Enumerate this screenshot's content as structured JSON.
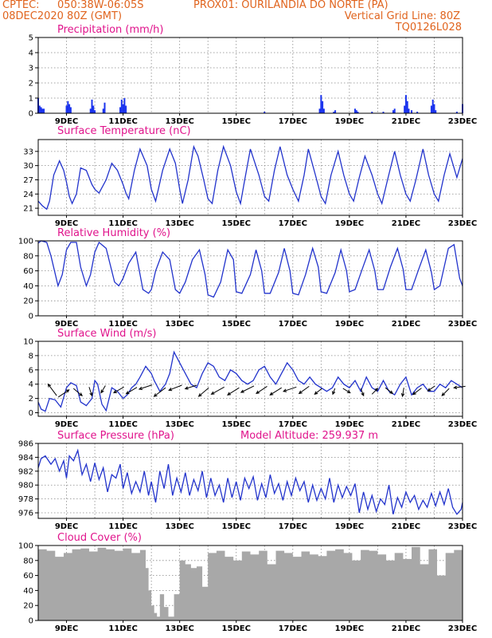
{
  "header": {
    "left1": "CPTEC:",
    "coords": "050:38W-06:05S",
    "station": "PROX01: OURILANDIA DO NORTE (PA)",
    "left2": "08DEC2020 80Z (GMT)",
    "grid_note": "Vertical Grid Line: 80Z",
    "code": "TQ0126L028"
  },
  "colors": {
    "header": "#e0641e",
    "title": "#e0148c",
    "line": "#2233cc",
    "bar": "#1a33ee",
    "cloud": "#a8a8a8",
    "wind": "#000000"
  },
  "x_tick_labels": [
    "9DEC",
    "11DEC",
    "13DEC",
    "15DEC",
    "17DEC",
    "19DEC",
    "21DEC",
    "23DEC"
  ],
  "chart_data": [
    {
      "id": "precipitation",
      "type": "bar",
      "title": "Precipitation (mm/h)",
      "ylim": [
        0,
        5
      ],
      "yticks": [
        0,
        1,
        2,
        3,
        4,
        5
      ],
      "x": [
        8.0,
        8.05,
        8.1,
        8.15,
        8.2,
        9.0,
        9.05,
        9.1,
        9.15,
        9.85,
        9.9,
        9.95,
        10.0,
        10.3,
        10.35,
        10.9,
        10.95,
        11.0,
        11.05,
        11.1,
        16.0,
        17.95,
        18.0,
        18.05,
        18.1,
        18.45,
        18.5,
        19.2,
        19.25,
        19.3,
        19.8,
        20.2,
        20.55,
        20.6,
        20.95,
        21.0,
        21.05,
        21.1,
        21.2,
        21.4,
        21.9,
        21.95,
        22.0,
        22.05,
        22.8,
        23.0
      ],
      "values": [
        1.0,
        0.5,
        0.4,
        0.3,
        0.3,
        0.5,
        0.8,
        0.6,
        0.4,
        0.3,
        0.9,
        0.5,
        0.2,
        0.3,
        0.7,
        0.4,
        0.9,
        0.6,
        1.0,
        0.5,
        0.1,
        0.3,
        1.2,
        0.8,
        0.3,
        0.1,
        0.2,
        0.3,
        0.2,
        0.1,
        0.1,
        0.1,
        0.2,
        0.3,
        0.5,
        1.2,
        0.8,
        0.3,
        0.2,
        0.1,
        0.5,
        0.9,
        0.6,
        0.2,
        0.1,
        0.6
      ],
      "grid": true
    },
    {
      "id": "temperature",
      "type": "line",
      "title": "Surface Temperature (nC)",
      "ylim": [
        19.5,
        35.5
      ],
      "yticks": [
        21,
        24,
        27,
        30,
        33
      ],
      "x": [
        8.0,
        8.15,
        8.3,
        8.4,
        8.55,
        8.75,
        8.9,
        9.0,
        9.1,
        9.2,
        9.35,
        9.5,
        9.7,
        9.9,
        10.0,
        10.15,
        10.4,
        10.6,
        10.8,
        11.0,
        11.1,
        11.2,
        11.4,
        11.6,
        11.85,
        12.0,
        12.15,
        12.4,
        12.65,
        12.85,
        13.0,
        13.1,
        13.3,
        13.5,
        13.65,
        13.85,
        14.0,
        14.15,
        14.35,
        14.55,
        14.8,
        15.0,
        15.15,
        15.3,
        15.5,
        15.8,
        16.0,
        16.15,
        16.35,
        16.55,
        16.8,
        17.0,
        17.2,
        17.4,
        17.55,
        17.8,
        18.0,
        18.15,
        18.35,
        18.6,
        18.8,
        19.0,
        19.15,
        19.35,
        19.55,
        19.8,
        20.0,
        20.15,
        20.35,
        20.6,
        20.8,
        21.0,
        21.15,
        21.35,
        21.6,
        21.8,
        22.0,
        22.15,
        22.35,
        22.55,
        22.8,
        23.0
      ],
      "values": [
        22.5,
        21.5,
        20.8,
        22.5,
        28.0,
        31.0,
        29.0,
        26.5,
        23.5,
        22.0,
        24.0,
        29.5,
        29.0,
        26.0,
        25.0,
        24.2,
        27.0,
        30.5,
        29.0,
        26.0,
        24.2,
        23.0,
        29.0,
        33.5,
        30.0,
        25.0,
        22.5,
        29.0,
        33.5,
        30.5,
        25.0,
        22.0,
        27.0,
        34.0,
        32.0,
        27.0,
        23.0,
        22.0,
        29.0,
        34.0,
        30.0,
        24.5,
        22.0,
        27.0,
        33.5,
        28.0,
        23.5,
        22.5,
        29.0,
        34.0,
        28.0,
        25.0,
        22.5,
        28.0,
        33.5,
        28.0,
        23.5,
        22.0,
        28.0,
        33.0,
        28.0,
        24.0,
        22.5,
        27.5,
        32.0,
        28.0,
        24.0,
        22.0,
        27.0,
        33.0,
        28.0,
        24.0,
        22.5,
        27.0,
        33.5,
        28.0,
        24.0,
        22.5,
        28.0,
        32.5,
        27.5,
        31.5
      ],
      "grid": true
    },
    {
      "id": "humidity",
      "type": "line",
      "title": "Relative Humidity (%)",
      "ylim": [
        0,
        100
      ],
      "yticks": [
        0,
        20,
        40,
        60,
        80,
        100
      ],
      "x": [
        8.0,
        8.1,
        8.3,
        8.45,
        8.7,
        8.85,
        9.0,
        9.15,
        9.35,
        9.5,
        9.7,
        9.85,
        10.0,
        10.15,
        10.4,
        10.7,
        10.85,
        11.0,
        11.2,
        11.45,
        11.7,
        11.9,
        12.0,
        12.15,
        12.4,
        12.65,
        12.85,
        13.0,
        13.2,
        13.45,
        13.7,
        13.9,
        14.0,
        14.2,
        14.45,
        14.7,
        14.9,
        15.0,
        15.2,
        15.5,
        15.7,
        15.9,
        16.0,
        16.2,
        16.5,
        16.7,
        16.9,
        17.0,
        17.2,
        17.45,
        17.7,
        17.9,
        18.0,
        18.2,
        18.5,
        18.7,
        18.9,
        19.0,
        19.2,
        19.45,
        19.7,
        19.9,
        20.0,
        20.2,
        20.45,
        20.7,
        20.9,
        21.0,
        21.2,
        21.45,
        21.7,
        21.9,
        22.0,
        22.2,
        22.5,
        22.7,
        22.9,
        23.0
      ],
      "values": [
        97,
        100,
        98,
        80,
        40,
        55,
        88,
        98,
        98,
        65,
        40,
        55,
        85,
        98,
        90,
        45,
        40,
        50,
        70,
        85,
        35,
        30,
        35,
        60,
        85,
        75,
        35,
        30,
        45,
        75,
        88,
        55,
        28,
        25,
        45,
        88,
        75,
        32,
        30,
        55,
        88,
        60,
        30,
        30,
        58,
        90,
        60,
        30,
        28,
        55,
        90,
        65,
        32,
        30,
        58,
        88,
        60,
        32,
        35,
        62,
        88,
        60,
        35,
        35,
        65,
        90,
        62,
        35,
        35,
        62,
        88,
        58,
        35,
        40,
        90,
        95,
        50,
        40
      ],
      "grid": true
    },
    {
      "id": "wind",
      "type": "line",
      "title": "Surface Wind (m/s)",
      "ylim": [
        -0.5,
        10
      ],
      "yticks": [
        0,
        2,
        4,
        6,
        8,
        10
      ],
      "x": [
        8.0,
        8.1,
        8.25,
        8.4,
        8.6,
        8.8,
        9.0,
        9.15,
        9.35,
        9.5,
        9.7,
        9.9,
        10.0,
        10.1,
        10.25,
        10.4,
        10.6,
        10.8,
        11.0,
        11.15,
        11.3,
        11.45,
        11.6,
        11.8,
        12.0,
        12.1,
        12.3,
        12.5,
        12.65,
        12.8,
        13.0,
        13.2,
        13.4,
        13.6,
        13.8,
        14.0,
        14.2,
        14.4,
        14.6,
        14.8,
        15.0,
        15.2,
        15.4,
        15.6,
        15.8,
        16.0,
        16.2,
        16.4,
        16.6,
        16.8,
        17.0,
        17.2,
        17.4,
        17.6,
        17.8,
        18.0,
        18.2,
        18.4,
        18.6,
        18.8,
        19.0,
        19.2,
        19.4,
        19.6,
        19.8,
        20.0,
        20.2,
        20.4,
        20.6,
        20.8,
        21.0,
        21.2,
        21.4,
        21.6,
        21.8,
        22.0,
        22.2,
        22.4,
        22.6,
        22.8,
        23.0
      ],
      "values": [
        1.5,
        0.5,
        0.2,
        2.0,
        1.8,
        0.8,
        3.5,
        4.2,
        3.8,
        1.5,
        1.0,
        2.0,
        4.5,
        4.0,
        1.2,
        0.3,
        3.5,
        3.0,
        2.0,
        2.5,
        3.5,
        4.0,
        5.0,
        6.5,
        5.5,
        4.5,
        3.0,
        4.0,
        5.5,
        8.5,
        7.0,
        5.5,
        4.0,
        3.5,
        5.5,
        7.0,
        6.5,
        5.0,
        4.5,
        6.0,
        5.5,
        4.5,
        4.0,
        4.5,
        6.0,
        6.5,
        5.0,
        4.0,
        5.5,
        7.0,
        6.0,
        4.5,
        4.0,
        5.0,
        4.0,
        3.5,
        3.0,
        3.5,
        5.0,
        4.0,
        3.5,
        4.5,
        3.0,
        5.0,
        3.5,
        3.0,
        4.5,
        3.0,
        2.5,
        4.0,
        5.0,
        2.5,
        3.5,
        4.0,
        3.0,
        3.0,
        4.0,
        3.5,
        4.5,
        4.0,
        3.5
      ],
      "grid": true
    },
    {
      "id": "pressure",
      "type": "line",
      "title": "Surface Pressure (hPa)",
      "annotation": "Model Altitude: 259.937 m",
      "ylim": [
        975.2,
        986
      ],
      "yticks": [
        976,
        978,
        980,
        982,
        984,
        986
      ],
      "x": [
        8.0,
        8.1,
        8.25,
        8.45,
        8.6,
        8.75,
        8.9,
        9.0,
        9.1,
        9.25,
        9.4,
        9.55,
        9.7,
        9.85,
        10.0,
        10.15,
        10.3,
        10.45,
        10.6,
        10.75,
        10.9,
        11.0,
        11.15,
        11.3,
        11.45,
        11.6,
        11.75,
        11.9,
        12.0,
        12.15,
        12.3,
        12.45,
        12.6,
        12.75,
        12.9,
        13.05,
        13.2,
        13.35,
        13.5,
        13.65,
        13.8,
        13.95,
        14.1,
        14.25,
        14.4,
        14.55,
        14.7,
        14.85,
        15.0,
        15.15,
        15.3,
        15.45,
        15.6,
        15.75,
        15.9,
        16.05,
        16.2,
        16.35,
        16.5,
        16.65,
        16.8,
        16.95,
        17.1,
        17.25,
        17.4,
        17.55,
        17.7,
        17.85,
        18.0,
        18.15,
        18.3,
        18.45,
        18.6,
        18.75,
        18.9,
        19.05,
        19.2,
        19.35,
        19.5,
        19.65,
        19.8,
        19.95,
        20.1,
        20.25,
        20.4,
        20.55,
        20.7,
        20.85,
        21.0,
        21.15,
        21.3,
        21.45,
        21.6,
        21.75,
        21.9,
        22.05,
        22.2,
        22.35,
        22.5,
        22.65,
        22.8,
        22.95,
        23.0
      ],
      "values": [
        982.5,
        983.8,
        984.2,
        983.0,
        983.8,
        982.0,
        983.5,
        981.0,
        984.2,
        983.5,
        985.0,
        981.5,
        983.0,
        980.5,
        983.2,
        980.8,
        982.5,
        979.0,
        981.5,
        981.0,
        983.0,
        979.5,
        981.8,
        978.8,
        980.5,
        979.0,
        982.0,
        978.5,
        980.5,
        977.5,
        982.0,
        979.5,
        983.0,
        978.5,
        981.0,
        979.0,
        981.8,
        978.5,
        980.8,
        979.2,
        982.0,
        978.2,
        981.0,
        978.5,
        980.0,
        977.5,
        981.0,
        978.2,
        980.5,
        977.8,
        981.0,
        979.5,
        981.2,
        977.8,
        980.2,
        978.2,
        981.5,
        978.8,
        980.2,
        977.8,
        980.5,
        978.5,
        981.0,
        979.2,
        980.5,
        977.5,
        980.0,
        977.8,
        979.5,
        978.0,
        981.0,
        977.5,
        980.0,
        978.2,
        979.8,
        978.5,
        980.2,
        976.0,
        979.0,
        976.5,
        978.5,
        976.2,
        978.0,
        977.2,
        980.0,
        975.8,
        978.2,
        976.8,
        979.0,
        977.5,
        978.5,
        976.5,
        977.8,
        976.8,
        978.8,
        977.0,
        979.0,
        977.2,
        979.5,
        976.8,
        975.8,
        976.5,
        977.5
      ],
      "grid": true
    },
    {
      "id": "cloud",
      "type": "area",
      "title": "Cloud Cover (%)",
      "ylim": [
        0,
        100
      ],
      "yticks": [
        0,
        20,
        40,
        60,
        80,
        100
      ],
      "x": [
        8.0,
        8.3,
        8.6,
        8.9,
        9.2,
        9.5,
        9.8,
        10.1,
        10.4,
        10.7,
        11.0,
        11.3,
        11.6,
        11.8,
        11.9,
        12.0,
        12.1,
        12.2,
        12.3,
        12.45,
        12.6,
        12.8,
        13.0,
        13.2,
        13.4,
        13.6,
        13.8,
        14.0,
        14.3,
        14.6,
        14.9,
        15.2,
        15.5,
        15.8,
        16.1,
        16.4,
        16.7,
        17.0,
        17.3,
        17.6,
        17.9,
        18.2,
        18.5,
        18.8,
        19.1,
        19.4,
        19.7,
        20.0,
        20.3,
        20.6,
        20.9,
        21.2,
        21.5,
        21.8,
        22.1,
        22.4,
        22.7,
        23.0
      ],
      "values": [
        95,
        93,
        85,
        90,
        95,
        96,
        92,
        97,
        95,
        93,
        96,
        90,
        94,
        70,
        40,
        20,
        10,
        5,
        35,
        18,
        5,
        35,
        80,
        75,
        70,
        72,
        45,
        90,
        93,
        85,
        80,
        92,
        88,
        93,
        75,
        93,
        90,
        85,
        92,
        88,
        86,
        93,
        95,
        90,
        80,
        94,
        93,
        88,
        80,
        90,
        82,
        98,
        75,
        95,
        60,
        90,
        94,
        95
      ],
      "grid": true
    },
    {
      "id": "wind-arrows",
      "type": "scatter",
      "title": "",
      "x": [
        8.5,
        8.9,
        9.4,
        9.85,
        10.3,
        10.85,
        11.3,
        11.8,
        12.3,
        12.85,
        13.4,
        13.85,
        14.35,
        14.9,
        15.4,
        15.9,
        16.4,
        16.9,
        17.4,
        17.9,
        18.45,
        18.9,
        19.45,
        19.9,
        20.4,
        20.9,
        21.4,
        21.9,
        22.4,
        22.9
      ],
      "values": [
        3.2,
        2.7,
        2.9,
        3.0,
        3.3,
        3.2,
        3.1,
        3.6,
        2.9,
        3.5,
        3.6,
        2.9,
        3.1,
        3.0,
        3.3,
        3.2,
        3.0,
        3.3,
        3.2,
        3.0,
        3.0,
        3.1,
        2.9,
        3.0,
        3.1,
        2.9,
        3.0,
        3.4,
        2.9,
        3.6
      ],
      "u": [
        -1.2,
        1.5,
        1.2,
        0.4,
        -0.6,
        -1.4,
        -1.5,
        -1.8,
        -1.6,
        -1.8,
        -1.6,
        -1.4,
        -1.8,
        -1.6,
        -1.8,
        -1.5,
        -1.6,
        -1.8,
        -1.4,
        -1.0,
        -0.3,
        1.0,
        0.4,
        0.8,
        1.0,
        -0.2,
        -1.2,
        -1.0,
        -1.0,
        -1.6
      ],
      "v": [
        1.6,
        1.0,
        -1.0,
        -1.2,
        -1.0,
        -0.8,
        -0.9,
        -0.6,
        -1.2,
        -0.7,
        -0.5,
        -1.2,
        -1.0,
        -1.0,
        -0.9,
        -1.0,
        -1.0,
        -0.6,
        -1.0,
        -0.8,
        -0.8,
        -0.6,
        -1.0,
        0.8,
        -0.8,
        -1.2,
        -0.9,
        -0.7,
        -1.0,
        -0.2
      ]
    }
  ]
}
